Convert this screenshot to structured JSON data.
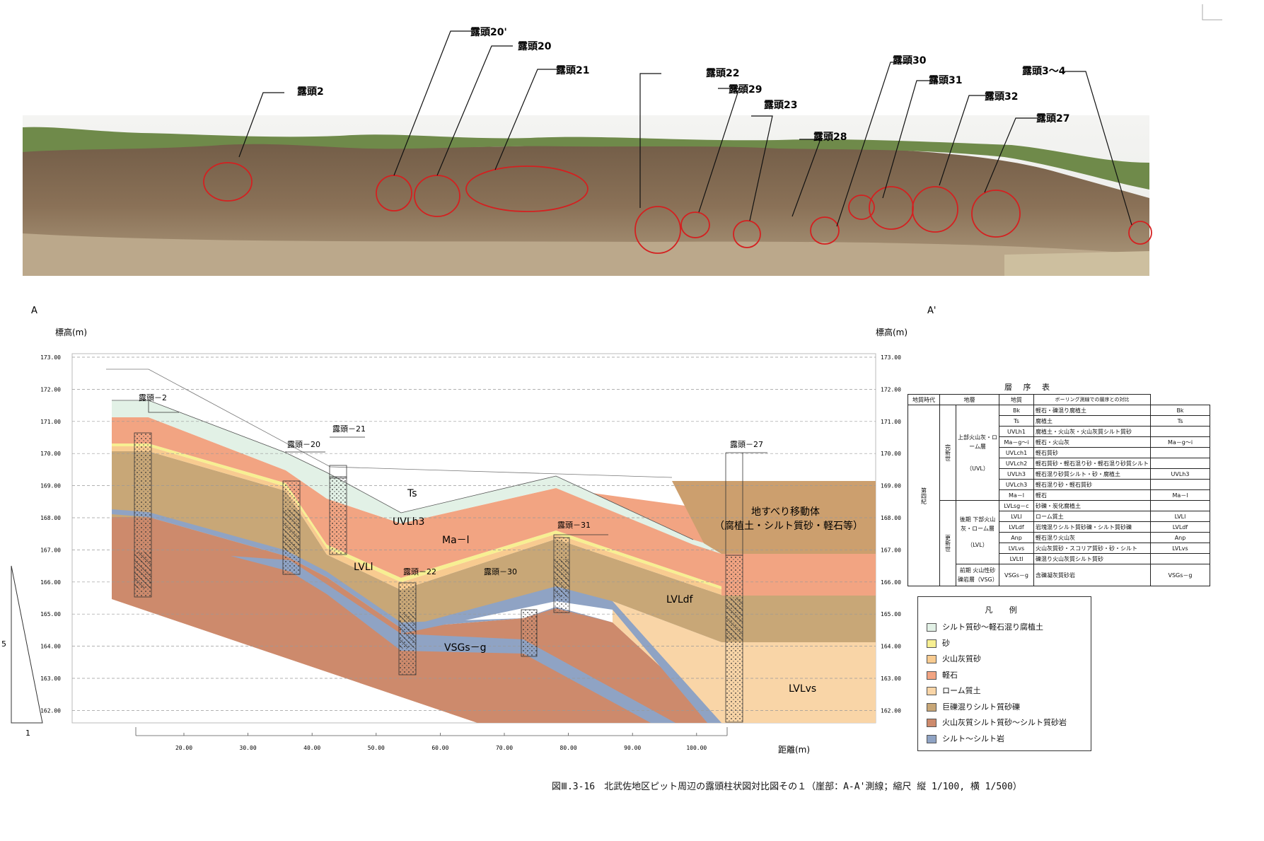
{
  "photo": {
    "callouts": [
      {
        "label": "露頭2"
      },
      {
        "label": "露頭20'"
      },
      {
        "label": "露頭20"
      },
      {
        "label": "露頭21"
      },
      {
        "label": "露頭22"
      },
      {
        "label": "露頭29"
      },
      {
        "label": "露頭23"
      },
      {
        "label": "露頭28"
      },
      {
        "label": "露頭30"
      },
      {
        "label": "露頭31"
      },
      {
        "label": "露頭32"
      },
      {
        "label": "露頭27"
      },
      {
        "label": "露頭3～4"
      }
    ],
    "circle_color": "#d42020"
  },
  "section": {
    "start_marker": "A",
    "end_marker": "A'",
    "y_axis_label": "標高(m)",
    "x_axis_label": "距離(m)",
    "y_ticks": [
      "173.00",
      "172.00",
      "171.00",
      "170.00",
      "169.00",
      "168.00",
      "167.00",
      "166.00",
      "165.00",
      "164.00",
      "163.00",
      "162.00"
    ],
    "x_ticks": [
      "20.00",
      "30.00",
      "40.00",
      "50.00",
      "60.00",
      "70.00",
      "80.00",
      "90.00",
      "100.00"
    ],
    "scale_marks": {
      "vertical": "5",
      "horizontal": "1"
    },
    "columns": [
      {
        "label": "露頭－2"
      },
      {
        "label": "露頭－20"
      },
      {
        "label": "露頭－21"
      },
      {
        "label": "露頭－22"
      },
      {
        "label": "露頭－30"
      },
      {
        "label": "露頭－31"
      },
      {
        "label": "露頭－27"
      }
    ],
    "unit_labels": {
      "ts": "Ts",
      "uvlh3": "UVLh3",
      "mal": "Ma－l",
      "lvll": "LVLl",
      "vsgs": "VSGs－g",
      "lvldf": "LVLdf",
      "lvlvs": "LVLvs",
      "landslide_1": "地すべり移動体",
      "landslide_2": "（腐植土・シルト質砂・軽石等）"
    },
    "colors": {
      "silt_humus": "#e2f1e6",
      "sand": "#f7ef92",
      "ash_sand": "#f8cb90",
      "pumice": "#f2a482",
      "loam": "#f9d5a7",
      "gravel": "#c8a777",
      "ash_silt": "#cd8a6c",
      "siltstone": "#8fa3c4",
      "landslide": "#cc9f6e"
    }
  },
  "strat_table": {
    "title": "層 序 表",
    "headers": [
      "地質時代",
      "地層",
      "",
      "地質",
      "ボーリング測線での層序との対比"
    ],
    "era": "第四紀",
    "holocene": "完新世",
    "pleistocene": "更新世",
    "late": "後期",
    "early": "前期",
    "uvl_name": "上部火山灰・ローム層",
    "uvl_abbr": "（UVL）",
    "lvl_name": "下部火山灰・ローム層",
    "lvl_abbr": "（LVL）",
    "vsg_name": "火山性砂礫岩層（VSG）",
    "rows": [
      {
        "code": "Bk",
        "desc": "軽石・礫混り腐植土",
        "corr": "Bk"
      },
      {
        "code": "Ts",
        "desc": "腐植土",
        "corr": "Ts"
      },
      {
        "code": "UVLh1",
        "desc": "腐植土・火山灰・火山灰質シルト質砂",
        "corr": ""
      },
      {
        "code": "Ma－g～i",
        "desc": "軽石・火山灰",
        "corr": "Ma－g～i"
      },
      {
        "code": "UVLch1",
        "desc": "軽石質砂",
        "corr": ""
      },
      {
        "code": "UVLch2",
        "desc": "軽石質砂・軽石混り砂・軽石混り砂質シルト",
        "corr": ""
      },
      {
        "code": "UVLh3",
        "desc": "軽石混り砂質シルト・砂・腐植土",
        "corr": "UVLh3"
      },
      {
        "code": "UVLch3",
        "desc": "軽石混り砂・軽石質砂",
        "corr": ""
      },
      {
        "code": "Ma－l",
        "desc": "軽石",
        "corr": "Ma－l"
      },
      {
        "code": "LVLsg－c",
        "desc": "砂礫・炭化腐植土",
        "corr": ""
      },
      {
        "code": "LVLl",
        "desc": "ローム質土",
        "corr": "LVLl"
      },
      {
        "code": "LVLdf",
        "desc": "岩塊混りシルト質砂礫・シルト質砂礫",
        "corr": "LVLdf"
      },
      {
        "code": "Anp",
        "desc": "軽石混り火山灰",
        "corr": "Anp"
      },
      {
        "code": "LVLvs",
        "desc": "火山灰質砂・スコリア質砂・砂・シルト",
        "corr": "LVLvs"
      },
      {
        "code": "LVLtl",
        "desc": "礫混り火山灰質シルト質砂",
        "corr": ""
      },
      {
        "code": "VSGs－g",
        "desc": "含礫凝灰質砂岩",
        "corr": "VSGs－g"
      }
    ]
  },
  "legend": {
    "title": "凡 例",
    "items": [
      {
        "label": "シルト質砂～軽石混り腐植土",
        "color": "#e2f1e6"
      },
      {
        "label": "砂",
        "color": "#f7ef92"
      },
      {
        "label": "火山灰質砂",
        "color": "#f8cb90"
      },
      {
        "label": "軽石",
        "color": "#f2a482"
      },
      {
        "label": "ローム質土",
        "color": "#f9d5a7"
      },
      {
        "label": "巨礫混りシルト質砂礫",
        "color": "#c8a777"
      },
      {
        "label": "火山灰質シルト質砂～シルト質砂岩",
        "color": "#cd8a6c"
      },
      {
        "label": "シルト～シルト岩",
        "color": "#8fa3c4"
      }
    ]
  },
  "caption": "図Ⅲ.3-16　北武佐地区ピット周辺の露頭柱状図対比図その１（崖部：A-A'測線；縮尺 縦 1/100, 横 1/500）"
}
